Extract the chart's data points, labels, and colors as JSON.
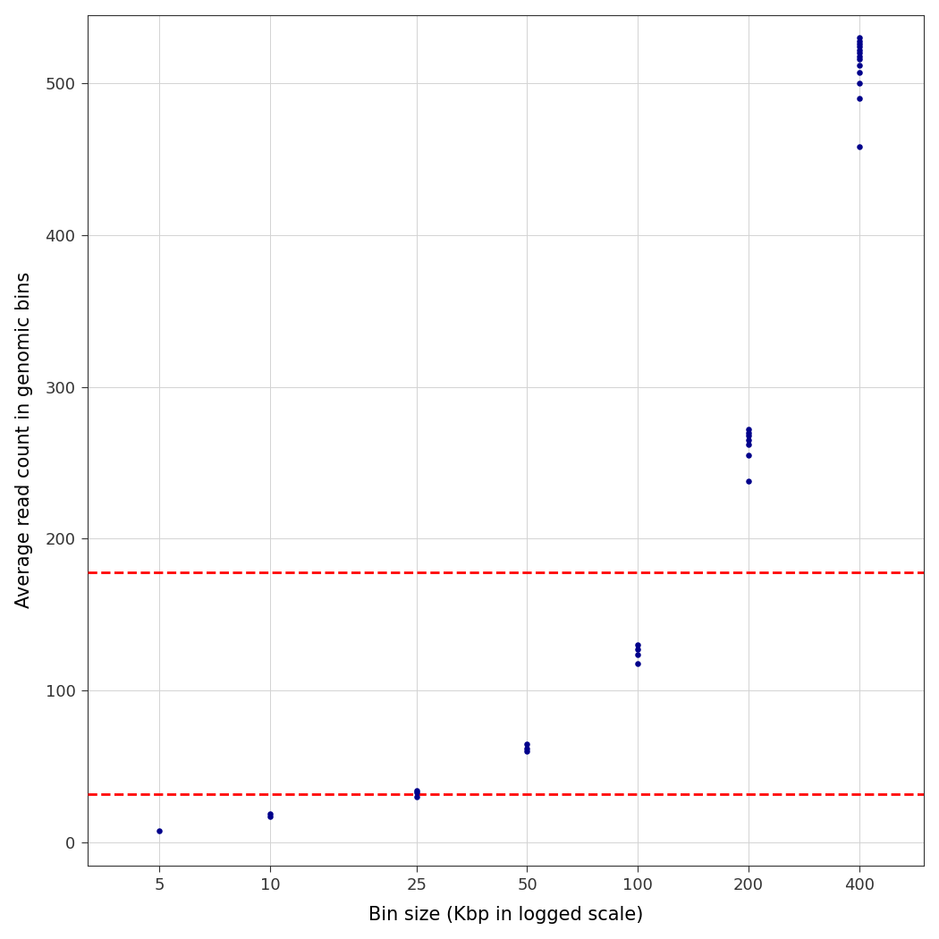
{
  "title": "",
  "xlabel": "Bin size (Kbp in logged scale)",
  "ylabel": "Average read count in genomic bins",
  "dot_color": "#00008B",
  "red_line_color": "red",
  "red_line_style": "--",
  "red_line_1": 178,
  "red_line_2": 32,
  "background_color": "#ffffff",
  "grid_color": "#d3d3d3",
  "xlim": [
    3.2,
    600
  ],
  "ylim": [
    -15,
    545
  ],
  "yticks": [
    0,
    100,
    200,
    300,
    400,
    500
  ],
  "xticks": [
    5,
    10,
    25,
    50,
    100,
    200,
    400
  ],
  "xticklabels": [
    "5",
    "10",
    "25",
    "50",
    "100",
    "200",
    "400"
  ],
  "dot_size": 22,
  "data_points": {
    "5": [
      8
    ],
    "10": [
      17,
      19
    ],
    "25": [
      30,
      33,
      34
    ],
    "50": [
      60,
      62,
      65
    ],
    "100": [
      118,
      124,
      127,
      130
    ],
    "200": [
      238,
      255,
      262,
      265,
      268,
      270,
      272
    ],
    "400": [
      458,
      490,
      500,
      507,
      512,
      516,
      518,
      520,
      522,
      524,
      526,
      528,
      530
    ]
  }
}
